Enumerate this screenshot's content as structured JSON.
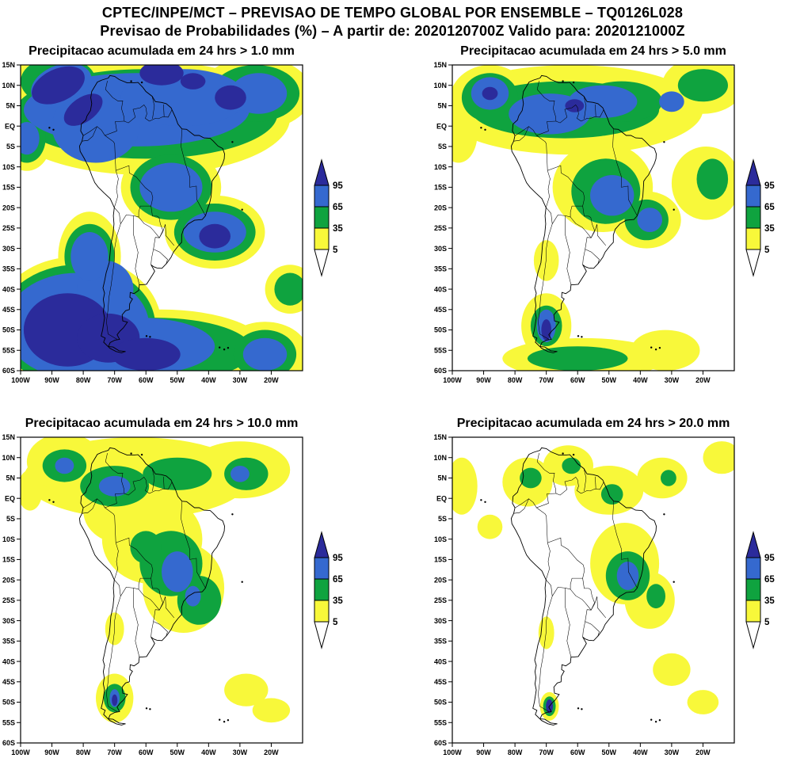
{
  "header": {
    "line1": "CPTEC/INPE/MCT – PREVISAO DE TEMPO GLOBAL POR ENSEMBLE – TQ0126L028",
    "line2": "Previsao de Probabilidades (%) –  A partir de: 2020120700Z  Valido para: 2020121000Z"
  },
  "chart_data": {
    "type": "heatmap",
    "title": "CPTEC/INPE/MCT – PREVISAO DE TEMPO GLOBAL POR ENSEMBLE – TQ0126L028",
    "subtitle": "Previsao de Probabilidades (%) – A partir de: 2020120700Z Valido para: 2020121000Z",
    "units": "%",
    "model": "TQ0126L028",
    "init_time": "2020120700Z",
    "valid_time": "2020121000Z",
    "lon_range": [
      -100,
      -10
    ],
    "lat_range": [
      -60,
      15
    ],
    "lat_ticks": [
      "15N",
      "10N",
      "5N",
      "EQ",
      "5S",
      "10S",
      "15S",
      "20S",
      "25S",
      "30S",
      "35S",
      "40S",
      "45S",
      "50S",
      "55S",
      "60S"
    ],
    "lon_ticks": [
      "100W",
      "90W",
      "80W",
      "70W",
      "60W",
      "50W",
      "40W",
      "30W",
      "20W"
    ],
    "colorbar": {
      "tick_labels": [
        "95",
        "65",
        "35",
        "5"
      ],
      "levels_percent": [
        5,
        35,
        65,
        95
      ],
      "colors": {
        "5": "#f8f83a",
        "35": "#0fa33f",
        "65": "#3569cf",
        "95": "#2b2b9b"
      },
      "below_min_color": "#ffffff"
    },
    "panels": [
      {
        "title": "Precipitacao acumulada em 24 hrs > 1.0 mm",
        "threshold_mm": 1.0,
        "regions": {
          "5": [
            [
              -60,
              2,
              46,
              14
            ],
            [
              -90,
              12,
              14,
              8
            ],
            [
              -25,
              8,
              18,
              9
            ],
            [
              -98,
              -3,
              8,
              8
            ],
            [
              -52,
              -15,
              16,
              10
            ],
            [
              -38,
              -26,
              16,
              9
            ],
            [
              -82,
              -49,
              27,
              17
            ],
            [
              -55,
              -55,
              34,
              10
            ],
            [
              -22,
              -56,
              14,
              8
            ],
            [
              -14,
              -40,
              8,
              6
            ],
            [
              -78,
              -32,
              10,
              11
            ]
          ],
          "35": [
            [
              -60,
              3,
              42,
              11
            ],
            [
              -88,
              11,
              12,
              6
            ],
            [
              -25,
              8,
              14,
              7
            ],
            [
              -98,
              -3,
              6,
              6
            ],
            [
              -52,
              -15,
              13,
              8
            ],
            [
              -38,
              -26,
              13,
              7
            ],
            [
              -82,
              -49,
              25,
              15
            ],
            [
              -57,
              -55,
              31,
              8
            ],
            [
              -22,
              -56,
              10,
              6
            ],
            [
              -14,
              -40,
              5,
              4
            ],
            [
              -78,
              -32,
              8,
              8
            ]
          ],
          "65": [
            [
              -63,
              4,
              36,
              9
            ],
            [
              -76,
              0,
              14,
              9
            ],
            [
              -48,
              7,
              20,
              7
            ],
            [
              -87,
              10,
              10,
              5,
              -20
            ],
            [
              -52,
              -15,
              10,
              6
            ],
            [
              -38,
              -26,
              10,
              5
            ],
            [
              -82,
              -49,
              23,
              13
            ],
            [
              -62,
              -54,
              24,
              7
            ],
            [
              -73,
              -40,
              9,
              7
            ],
            [
              -78,
              -32,
              6,
              6
            ],
            [
              -24,
              8,
              9,
              5
            ],
            [
              -98,
              -3,
              4,
              4
            ],
            [
              -22,
              -56,
              7,
              4
            ]
          ],
          "95": [
            [
              -88,
              10,
              9,
              4,
              -25
            ],
            [
              -80,
              4,
              7,
              3,
              -35
            ],
            [
              -55,
              13,
              7,
              3
            ],
            [
              -33,
              7,
              5,
              3
            ],
            [
              -45,
              11,
              4,
              2
            ],
            [
              -38,
              -27,
              5,
              3
            ],
            [
              -85,
              -50,
              14,
              9
            ],
            [
              -72,
              -52,
              10,
              6
            ],
            [
              -60,
              -56,
              11,
              4
            ]
          ]
        }
      },
      {
        "title": "Precipitacao acumulada em 24 hrs > 5.0 mm",
        "threshold_mm": 5.0,
        "regions": {
          "5": [
            [
              -62,
              4,
              42,
              11
            ],
            [
              -88,
              6,
              13,
              9
            ],
            [
              -98,
              -2,
              6,
              7
            ],
            [
              -52,
              -15,
              16,
              11
            ],
            [
              -38,
              -23,
              11,
              7
            ],
            [
              -19,
              -14,
              11,
              9
            ],
            [
              -20,
              10,
              13,
              7
            ],
            [
              -70,
              -49,
              8,
              8
            ],
            [
              -58,
              -57,
              26,
              5
            ],
            [
              -32,
              -55,
              11,
              5
            ],
            [
              -70,
              -33,
              4,
              5
            ]
          ],
          "35": [
            [
              -64,
              4,
              30,
              7
            ],
            [
              -46,
              6,
              13,
              5
            ],
            [
              -88,
              7,
              9,
              6
            ],
            [
              -51,
              -16,
              11,
              8
            ],
            [
              -38,
              -23,
              7,
              5
            ],
            [
              -20,
              10,
              8,
              4
            ],
            [
              -70,
              -49,
              5,
              5
            ],
            [
              -60,
              -57,
              16,
              3
            ],
            [
              -17,
              -13,
              5,
              5
            ]
          ],
          "65": [
            [
              -69,
              3,
              13,
              5
            ],
            [
              -52,
              6,
              11,
              4
            ],
            [
              -88,
              8,
              6,
              4
            ],
            [
              -49,
              -17,
              7,
              5
            ],
            [
              -37,
              -23,
              4,
              3
            ],
            [
              -70,
              -49,
              3,
              4
            ],
            [
              -30,
              6,
              4,
              2.5
            ]
          ],
          "95": [
            [
              -70,
              -50,
              1.6,
              2.6
            ],
            [
              -88,
              8,
              2.5,
              1.6
            ],
            [
              -61,
              5,
              3,
              1.6
            ]
          ]
        }
      },
      {
        "title": "Precipitacao acumulada em 24 hrs > 10.0 mm",
        "threshold_mm": 10.0,
        "regions": {
          "5": [
            [
              -63,
              5,
              36,
              10
            ],
            [
              -86,
              9,
              12,
              7
            ],
            [
              -30,
              7,
              16,
              7
            ],
            [
              -58,
              -10,
              16,
              11
            ],
            [
              -48,
              -22,
              13,
              11
            ],
            [
              -68,
              -3,
              12,
              8
            ],
            [
              -70,
              -49,
              6,
              6
            ],
            [
              -28,
              -47,
              7,
              4
            ],
            [
              -20,
              -52,
              6,
              3
            ],
            [
              -70,
              -32,
              3,
              4
            ],
            [
              -97,
              2,
              4,
              5
            ]
          ],
          "35": [
            [
              -70,
              3,
              11,
              5
            ],
            [
              -50,
              6,
              11,
              4
            ],
            [
              -86,
              8,
              7,
              4
            ],
            [
              -52,
              -16,
              10,
              8
            ],
            [
              -43,
              -25,
              7,
              6
            ],
            [
              -28,
              6,
              7,
              4
            ],
            [
              -70,
              -49,
              3.5,
              3.5
            ],
            [
              -60,
              -12,
              5,
              4
            ]
          ],
          "65": [
            [
              -50,
              -18,
              5,
              5
            ],
            [
              -70,
              3,
              5,
              2.5
            ],
            [
              -30,
              6,
              3,
              2
            ],
            [
              -86,
              8,
              3,
              2
            ],
            [
              -70,
              -49,
              1.6,
              2.2
            ],
            [
              -45,
              -24,
              2.5,
              2.5
            ]
          ],
          "95": [
            [
              -70,
              -49.5,
              0.9,
              1.4
            ]
          ]
        }
      },
      {
        "title": "Precipitacao acumulada em 24 hrs > 20.0 mm",
        "threshold_mm": 20.0,
        "regions": {
          "5": [
            [
              -76,
              4,
              8,
              6
            ],
            [
              -63,
              8,
              8,
              5
            ],
            [
              -50,
              2,
              11,
              6
            ],
            [
              -33,
              5,
              8,
              5
            ],
            [
              -97,
              3,
              5,
              7
            ],
            [
              -14,
              10,
              6,
              4
            ],
            [
              -45,
              -16,
              11,
              10
            ],
            [
              -37,
              -25,
              8,
              7
            ],
            [
              -30,
              -42,
              6,
              4
            ],
            [
              -20,
              -50,
              5,
              3
            ],
            [
              -70,
              -33,
              2.5,
              4
            ],
            [
              -69,
              -51,
              3,
              3.5
            ],
            [
              -88,
              -7,
              4,
              3
            ]
          ],
          "35": [
            [
              -44,
              -19,
              7,
              6
            ],
            [
              -75,
              5,
              3.5,
              2.5
            ],
            [
              -62,
              8,
              3,
              2
            ],
            [
              -49,
              1,
              3.5,
              2.5
            ],
            [
              -35,
              -24,
              3,
              3
            ],
            [
              -69,
              -51,
              2,
              2.4
            ],
            [
              -31,
              5,
              2.5,
              2
            ]
          ],
          "65": [
            [
              -44,
              -19,
              3.5,
              3.5
            ]
          ],
          "95": [
            [
              -69,
              -51,
              1.1,
              1.7
            ]
          ]
        }
      }
    ]
  }
}
